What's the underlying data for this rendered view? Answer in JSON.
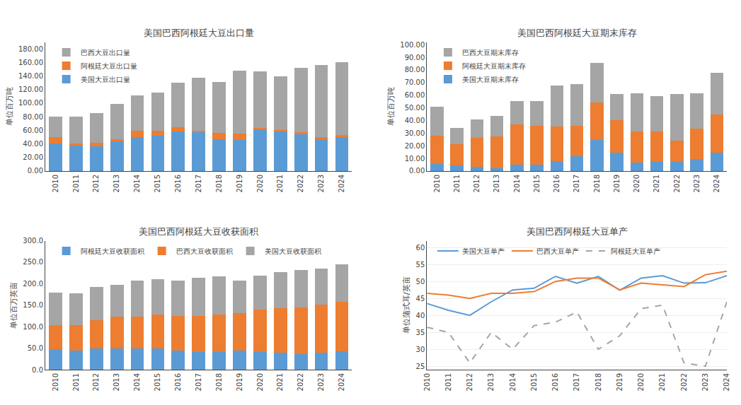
{
  "chart_data": [
    {
      "type": "bar",
      "stacked": true,
      "title": "美国巴西阿根廷大豆出口量",
      "y_label": "单位百万吨",
      "categories": [
        "2010",
        "2011",
        "2012",
        "2013",
        "2014",
        "2015",
        "2016",
        "2017",
        "2018",
        "2019",
        "2020",
        "2021",
        "2022",
        "2023",
        "2024"
      ],
      "series": [
        {
          "name": "美国大豆出口量",
          "color": "#5B9BD5",
          "values": [
            41,
            37,
            36,
            44,
            50,
            52,
            58,
            58,
            47,
            46,
            61,
            59,
            54,
            48,
            51
          ]
        },
        {
          "name": "阿根廷大豆出口量",
          "color": "#ED7D31",
          "values": [
            9,
            4,
            6,
            3,
            9,
            7,
            7,
            1,
            9,
            9,
            3,
            1,
            3,
            2,
            2
          ]
        },
        {
          "name": "巴西大豆出口量",
          "color": "#A5A5A5",
          "values": [
            30,
            39,
            43,
            52,
            52,
            57,
            65,
            78,
            75,
            93,
            83,
            80,
            95,
            106,
            107
          ]
        }
      ],
      "ylim": [
        0,
        190
      ],
      "yticks": [
        {
          "value": 0,
          "label": "0.00"
        },
        {
          "value": 20,
          "label": "20.00"
        },
        {
          "value": 40,
          "label": "40.00"
        },
        {
          "value": 60,
          "label": "60.00"
        },
        {
          "value": 80,
          "label": "80.00"
        },
        {
          "value": 100,
          "label": "100.00"
        },
        {
          "value": 120,
          "label": "120.00"
        },
        {
          "value": 140,
          "label": "140.00"
        },
        {
          "value": 160,
          "label": "160.00"
        },
        {
          "value": 180,
          "label": "180.00"
        }
      ],
      "grid": false,
      "legend": "upper left"
    },
    {
      "type": "bar",
      "stacked": true,
      "title": "美国巴西阿根廷大豆期末库存",
      "y_label": "单位百万吨",
      "categories": [
        "2010",
        "2011",
        "2012",
        "2013",
        "2014",
        "2015",
        "2016",
        "2017",
        "2018",
        "2019",
        "2020",
        "2021",
        "2022",
        "2023",
        "2024"
      ],
      "series": [
        {
          "name": "美国大豆期末库存",
          "color": "#5B9BD5",
          "values": [
            5.5,
            4.5,
            3.5,
            2.0,
            5.0,
            5.0,
            8.0,
            11.5,
            24.5,
            14.5,
            6.5,
            7.0,
            7.0,
            9.5,
            14.5
          ]
        },
        {
          "name": "阿根廷大豆期末库存",
          "color": "#ED7D31",
          "values": [
            22.5,
            16.5,
            22.5,
            25.5,
            32.0,
            31.0,
            27.5,
            24.5,
            29.5,
            25.5,
            25.0,
            24.5,
            17.0,
            24.0,
            30.0
          ]
        },
        {
          "name": "巴西大豆期末库存",
          "color": "#A5A5A5",
          "values": [
            23.0,
            13.0,
            15.0,
            16.0,
            18.5,
            19.5,
            32.0,
            32.5,
            31.5,
            21.0,
            30.0,
            27.5,
            37.0,
            28.0,
            33.5
          ]
        }
      ],
      "ylim": [
        0,
        102
      ],
      "yticks": [
        {
          "value": 0,
          "label": "0.00"
        },
        {
          "value": 10,
          "label": "10.00"
        },
        {
          "value": 20,
          "label": "20.00"
        },
        {
          "value": 30,
          "label": "30.00"
        },
        {
          "value": 40,
          "label": "40.00"
        },
        {
          "value": 50,
          "label": "50.00"
        },
        {
          "value": 60,
          "label": "60.00"
        },
        {
          "value": 70,
          "label": "70.00"
        },
        {
          "value": 80,
          "label": "80.00"
        },
        {
          "value": 90,
          "label": "90.00"
        },
        {
          "value": 100,
          "label": "100.00"
        }
      ],
      "grid": false,
      "legend": "upper left"
    },
    {
      "type": "bar",
      "stacked": true,
      "title": "美国巴西阿根廷大豆收获面积",
      "y_label": "单位百万英亩",
      "categories": [
        "2010",
        "2011",
        "2012",
        "2013",
        "2014",
        "2015",
        "2016",
        "2017",
        "2018",
        "2019",
        "2020",
        "2021",
        "2022",
        "2023",
        "2024"
      ],
      "series": [
        {
          "name": "阿根廷大豆收获面积",
          "color": "#5B9BD5",
          "values": [
            47,
            44,
            50,
            50,
            49,
            49,
            44,
            41,
            41,
            44,
            41,
            40,
            37,
            40,
            42
          ]
        },
        {
          "name": "巴西大豆收获面积",
          "color": "#ED7D31",
          "values": [
            57,
            60,
            65,
            73,
            75,
            79,
            81,
            84,
            88,
            88,
            98,
            103,
            108,
            112,
            116
          ]
        },
        {
          "name": "美国大豆收获面积",
          "color": "#A5A5A5",
          "values": [
            76,
            74,
            77,
            74,
            83,
            82,
            83,
            89,
            88,
            75,
            79,
            84,
            87,
            83,
            87
          ]
        }
      ],
      "ylim": [
        0,
        300
      ],
      "yticks": [
        {
          "value": 0,
          "label": "0.0"
        },
        {
          "value": 50,
          "label": "50.0"
        },
        {
          "value": 100,
          "label": "100.0"
        },
        {
          "value": 150,
          "label": "150.0"
        },
        {
          "value": 200,
          "label": "200.0"
        },
        {
          "value": 250,
          "label": "250.0"
        },
        {
          "value": 300,
          "label": "300.0"
        }
      ],
      "grid": false,
      "legend": "upper left"
    },
    {
      "type": "line",
      "title": "美国巴西阿根廷大豆单产",
      "y_label": "单位蒲式耳/英亩",
      "categories": [
        "2010",
        "2011",
        "2012",
        "2013",
        "2014",
        "2015",
        "2016",
        "2017",
        "2018",
        "2019",
        "2020",
        "2021",
        "2022",
        "2023",
        "2024"
      ],
      "series": [
        {
          "name": "美国大豆单产",
          "color": "#5B9BD5",
          "line_style": "solid",
          "values": [
            43.5,
            41.5,
            40.0,
            44.0,
            47.5,
            48.0,
            51.5,
            49.5,
            51.5,
            47.4,
            51.0,
            51.7,
            49.5,
            49.6,
            51.7
          ]
        },
        {
          "name": "巴西大豆单产",
          "color": "#ED7D31",
          "line_style": "solid",
          "values": [
            46.5,
            46.0,
            45.0,
            46.5,
            46.5,
            47.0,
            50.0,
            51.0,
            51.0,
            47.5,
            49.5,
            49.0,
            48.5,
            52.0,
            53.0
          ]
        },
        {
          "name": "阿根廷大豆单产",
          "color": "#A5A5A5",
          "line_style": "dashed",
          "values": [
            36.5,
            35.0,
            26.0,
            35.0,
            30.0,
            37.0,
            38.0,
            41.0,
            30.0,
            34.0,
            42.0,
            43.0,
            26.0,
            25.0,
            44.0
          ]
        }
      ],
      "ylim": [
        24,
        62
      ],
      "yticks": [
        25,
        30,
        35,
        40,
        45,
        50,
        55,
        60
      ],
      "grid": true,
      "legend": "upper left"
    }
  ]
}
